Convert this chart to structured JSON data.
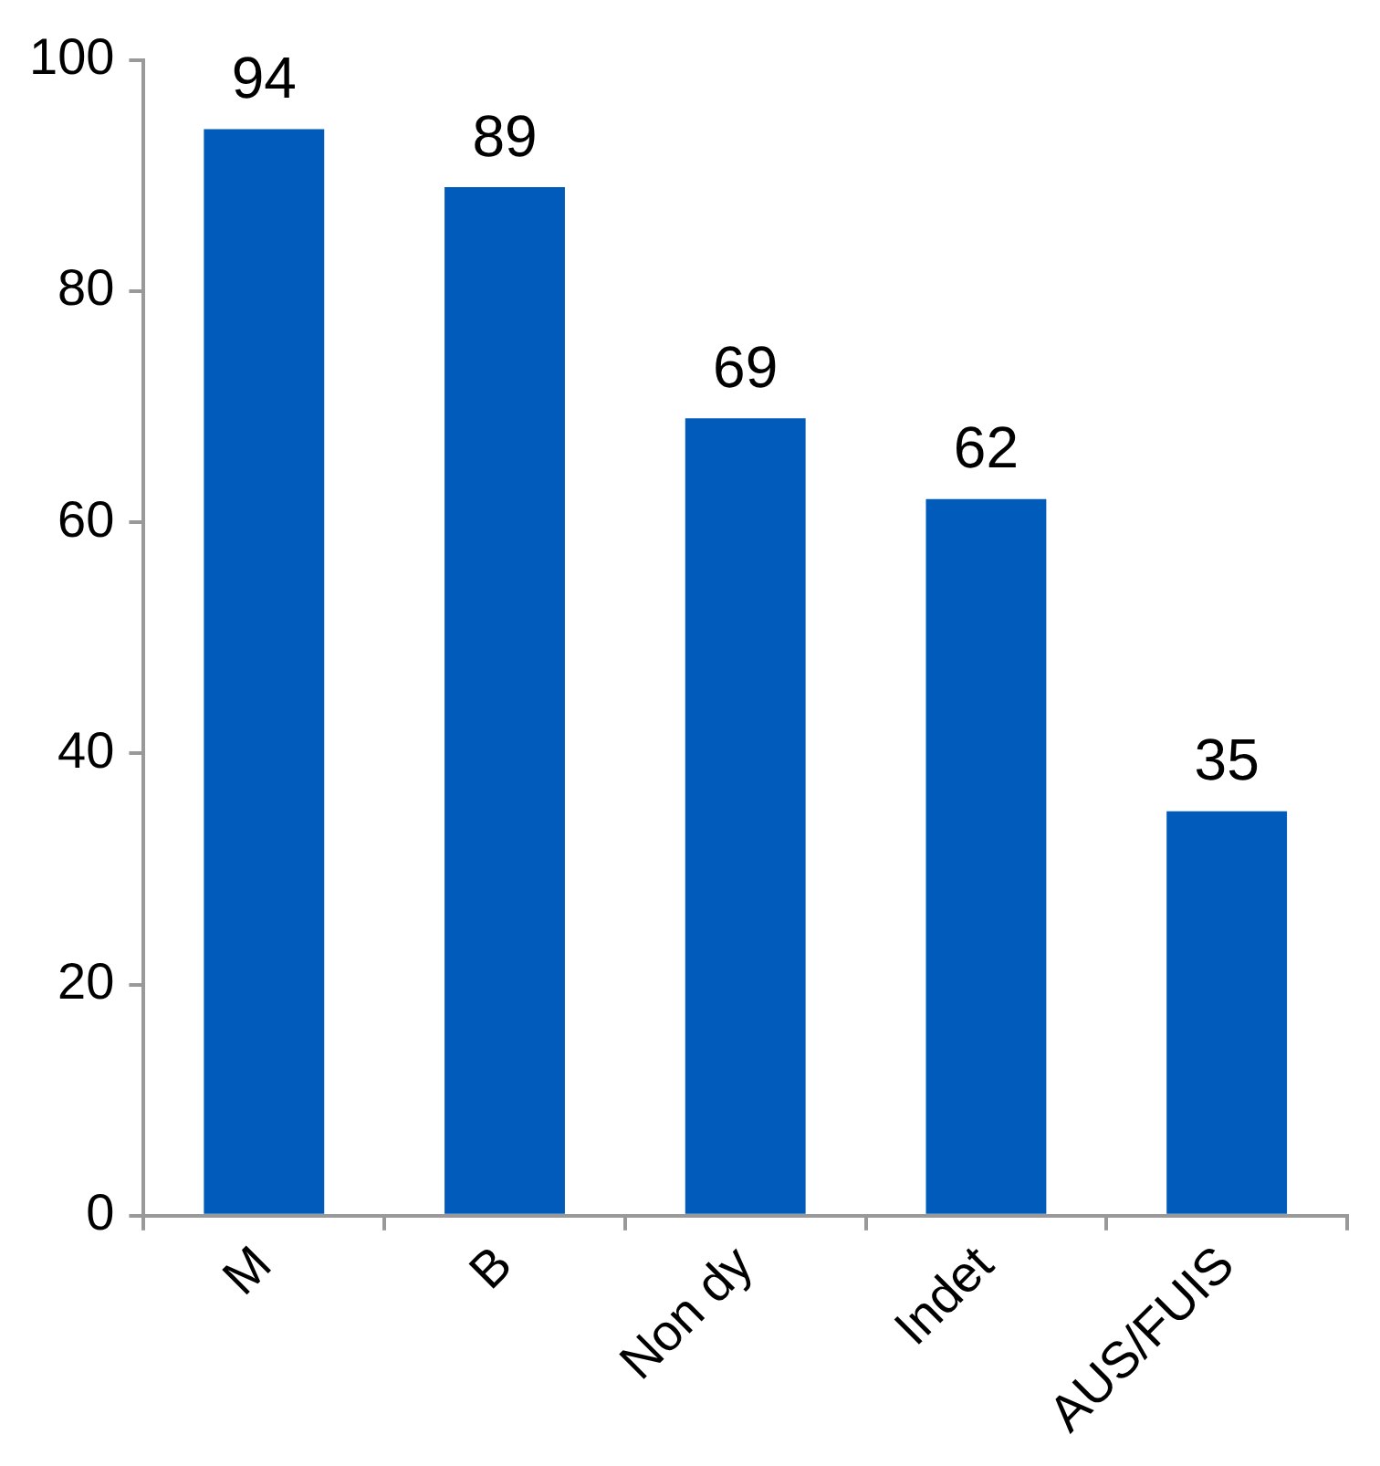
{
  "chart_data": {
    "type": "bar",
    "categories": [
      "M",
      "B",
      "Non dy",
      "Indet",
      "AUS/FUIS"
    ],
    "values": [
      94,
      89,
      69,
      62,
      35
    ],
    "color": "#005bbb",
    "ylim": [
      0,
      100
    ],
    "yticks": [
      0,
      20,
      40,
      60,
      80,
      100
    ],
    "grid": false,
    "data_labels": true
  }
}
